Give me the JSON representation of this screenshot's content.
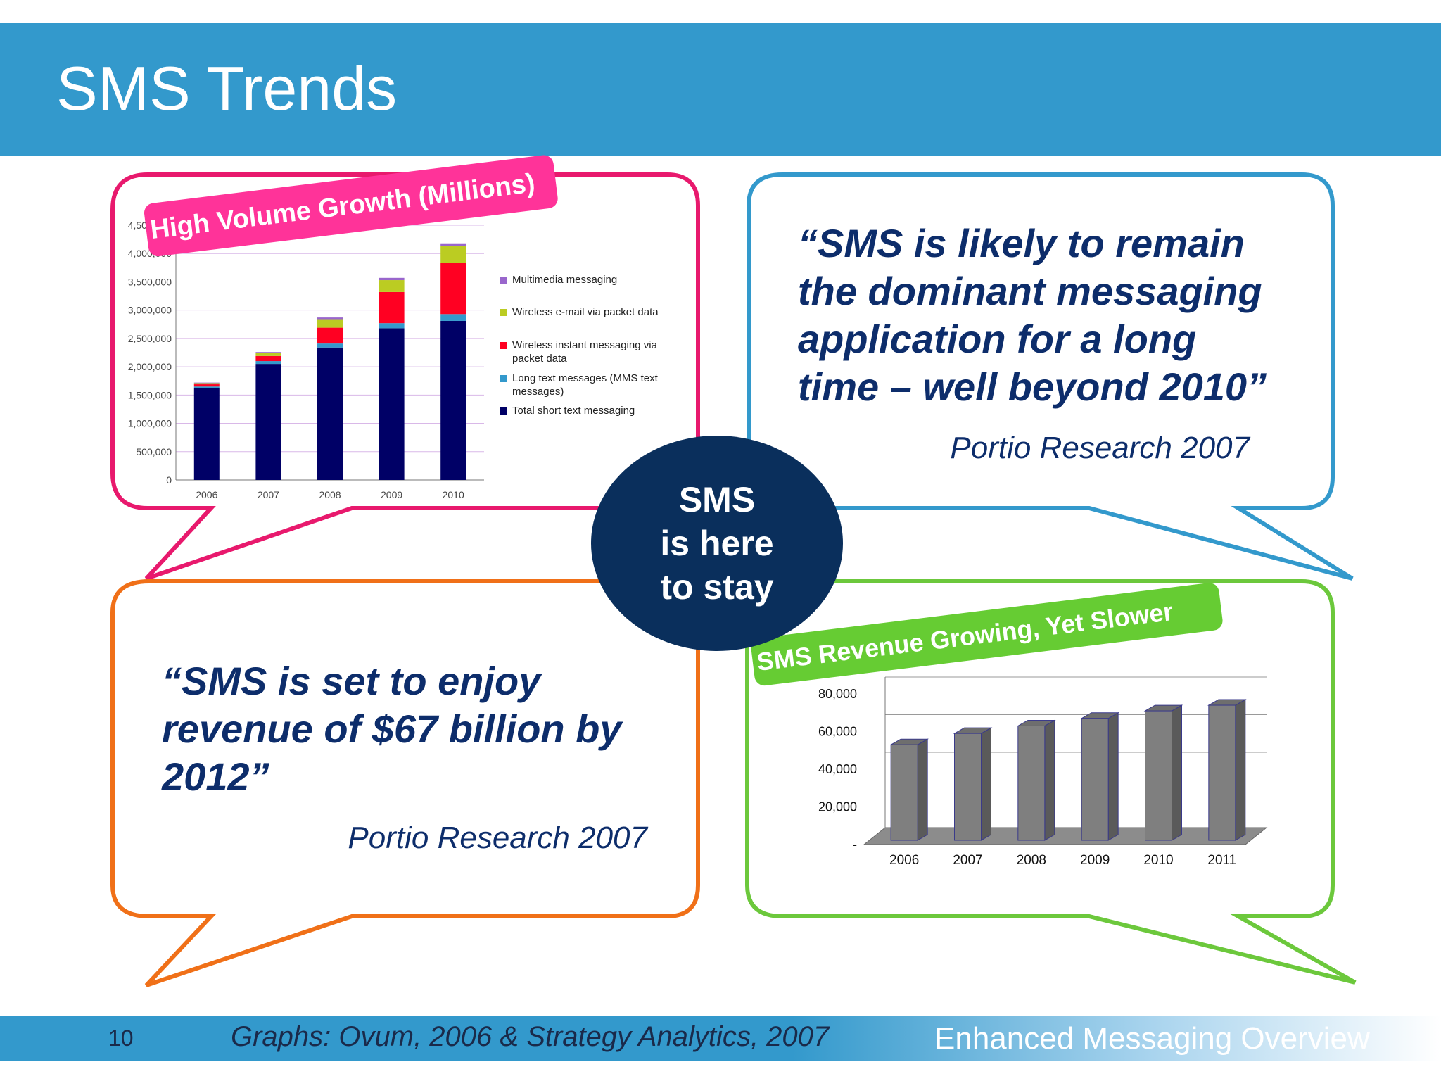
{
  "slide": {
    "title": "SMS Trends",
    "center": [
      "SMS",
      "is here",
      "to stay"
    ]
  },
  "quotes": {
    "top_right": {
      "lines": [
        "“SMS is likely to remain",
        "the dominant messaging",
        "application for a long",
        "time – well beyond 2010”"
      ],
      "source": "Portio Research 2007"
    },
    "bottom_left": {
      "lines": [
        "“SMS is set to enjoy",
        "revenue of $67 billion by",
        "2012”"
      ],
      "source": "Portio Research 2007"
    }
  },
  "footer": {
    "page_number": "10",
    "credit": "Graphs: Ovum, 2006 & Strategy Analytics, 2007",
    "deck_title": "Enhanced Messaging Overview"
  },
  "colors": {
    "header": "#3399cc",
    "pink": "#e8196d",
    "blue": "#3399cc",
    "orange": "#f07018",
    "green": "#6cc83c",
    "navy": "#0a2f5c"
  },
  "chart_data": [
    {
      "type": "bar",
      "stacked": true,
      "title": "High Volume Growth (Millions)",
      "categories": [
        "2006",
        "2007",
        "2008",
        "2009",
        "2010"
      ],
      "y_ticks": [
        "0",
        "500,000",
        "1,000,000",
        "1,500,000",
        "2,000,000",
        "2,500,000",
        "3,000,000",
        "3,500,000",
        "4,000,000",
        "4,500,000"
      ],
      "ylim": [
        0,
        4500000
      ],
      "legend_position": "right",
      "series": [
        {
          "name": "Total short text messaging",
          "color": "#000066",
          "values": [
            1620000,
            2050000,
            2340000,
            2680000,
            2810000
          ]
        },
        {
          "name": "Long text messages (MMS text messages)",
          "color": "#3399cc",
          "values": [
            30000,
            50000,
            70000,
            90000,
            120000
          ]
        },
        {
          "name": "Wireless instant messaging via packet data",
          "color": "#ff0022",
          "values": [
            40000,
            90000,
            280000,
            550000,
            900000
          ]
        },
        {
          "name": "Wireless e-mail via packet data",
          "color": "#bbcc22",
          "values": [
            20000,
            50000,
            150000,
            210000,
            300000
          ]
        },
        {
          "name": "Multimedia messaging",
          "color": "#9966cc",
          "values": [
            10000,
            20000,
            30000,
            40000,
            50000
          ]
        }
      ]
    },
    {
      "type": "bar",
      "three_d": true,
      "title": "SMS Revenue Growing, Yet Slower",
      "categories": [
        "2006",
        "2007",
        "2008",
        "2009",
        "2010",
        "2011"
      ],
      "values": [
        53000,
        59000,
        63000,
        67000,
        71000,
        74000
      ],
      "y_ticks": [
        "-",
        "20,000",
        "40,000",
        "60,000",
        "80,000"
      ],
      "ylim": [
        0,
        80000
      ],
      "bar_color": "#7f7f7f"
    }
  ]
}
